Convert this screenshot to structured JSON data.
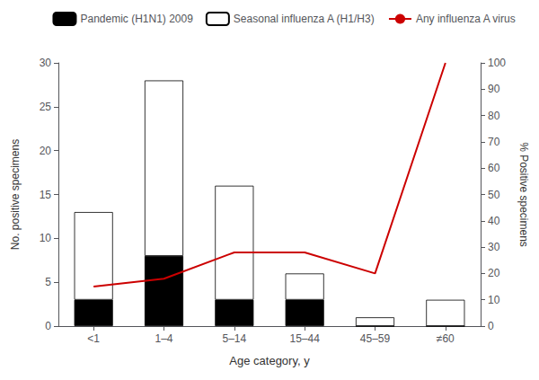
{
  "chart_data": {
    "type": "bar",
    "categories": [
      "<1",
      "1–4",
      "5–14",
      "15–44",
      "45–59",
      "≠60"
    ],
    "xlabel": "Age category, y",
    "ylabel": "No. positive specimens",
    "y2label": "% Positive specimens",
    "series": [
      {
        "name": "Pandemic (H1N1) 2009",
        "type": "bar",
        "color": "#000000",
        "values": [
          3,
          8,
          3,
          3,
          0,
          0
        ]
      },
      {
        "name": "Seasonal influenza A (H1/H3)",
        "type": "bar",
        "color": "#ffffff",
        "values": [
          10,
          20,
          13,
          3,
          1,
          3
        ]
      },
      {
        "name": "Any influenza A virus",
        "type": "line",
        "axis": "y2",
        "color": "#cc0000",
        "values": [
          15,
          18,
          28,
          28,
          20,
          100
        ]
      }
    ],
    "stacked": true,
    "ylim": [
      0,
      30
    ],
    "yticks": [
      0,
      5,
      10,
      15,
      20,
      25,
      30
    ],
    "y2lim": [
      0,
      100
    ],
    "y2ticks": [
      0,
      10,
      20,
      30,
      40,
      50,
      60,
      70,
      80,
      90,
      100
    ],
    "legend": "upper right",
    "grid": false
  }
}
